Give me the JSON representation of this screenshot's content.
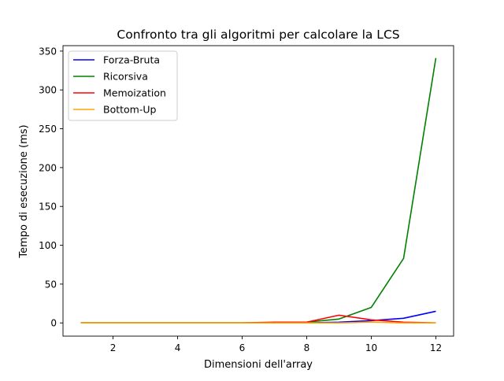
{
  "chart_data": {
    "type": "line",
    "title": "Confronto tra gli algoritmi per calcolare la LCS",
    "xlabel": "Dimensioni dell'array",
    "ylabel": "Tempo di esecuzione (ms)",
    "xlim": [
      0.45,
      12.55
    ],
    "ylim": [
      -17,
      357
    ],
    "xticks": [
      2,
      4,
      6,
      8,
      10,
      12
    ],
    "yticks": [
      0,
      50,
      100,
      150,
      200,
      250,
      300,
      350
    ],
    "grid": false,
    "legend_position": "top-left",
    "x": [
      1,
      2,
      3,
      4,
      5,
      6,
      7,
      8,
      9,
      10,
      11,
      12
    ],
    "series": [
      {
        "name": "Forza-Bruta",
        "color": "#0000ff",
        "values": [
          0,
          0,
          0,
          0,
          0,
          0,
          0,
          0,
          1,
          3,
          6,
          15
        ]
      },
      {
        "name": "Ricorsiva",
        "color": "#008000",
        "values": [
          0,
          0,
          0,
          0,
          0,
          0,
          0,
          1,
          5,
          20,
          83,
          341
        ]
      },
      {
        "name": "Memoization",
        "color": "#ff0000",
        "values": [
          0,
          0,
          0,
          0,
          0,
          0,
          1,
          1,
          10,
          4,
          1,
          0
        ]
      },
      {
        "name": "Bottom-Up",
        "color": "#ffa500",
        "values": [
          0,
          0,
          0,
          0,
          0,
          0,
          0,
          0,
          0,
          1,
          0,
          0
        ]
      }
    ]
  }
}
